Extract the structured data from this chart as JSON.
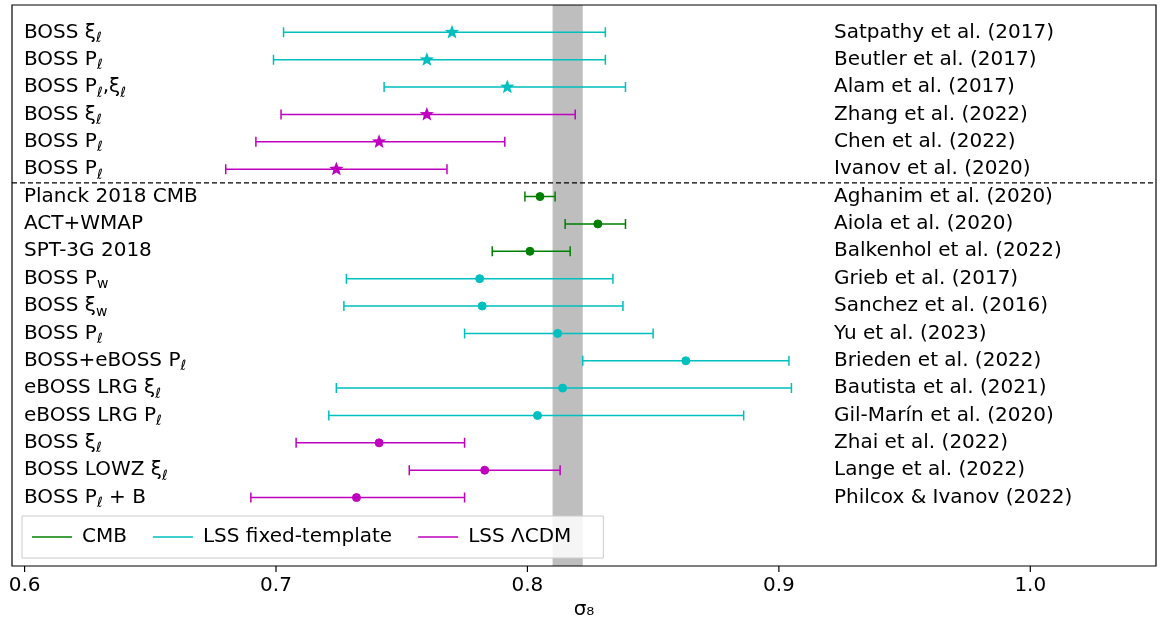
{
  "chart_data": {
    "type": "scatter",
    "orientation": "horizontal",
    "xlabel": "σ₈",
    "categories": [
      "BOSS ξ$_{ℓ}$",
      "BOSS P$_{ℓ}$",
      "BOSS P$_{ℓ}$,ξ$_{ℓ}$",
      "BOSS ξ$_{ℓ}$",
      "BOSS P$_{ℓ}$",
      "BOSS P$_{ℓ}$",
      "Planck 2018 CMB",
      "ACT+WMAP",
      "SPT-3G 2018",
      "BOSS P$_{w}$",
      "BOSS ξ$_{w}$",
      "BOSS P$_{ℓ}$",
      "BOSS+eBOSS P$_{ℓ}$",
      "eBOSS LRG ξ$_{ℓ}$",
      "eBOSS LRG P$_{ℓ}$",
      "BOSS ξ$_{ℓ}$",
      "BOSS LOWZ ξ$_{ℓ}$",
      "BOSS P$_{ℓ}$ + B"
    ],
    "y2_categories": [
      "Satpathy et al. (2017)",
      "Beutler et al. (2017)",
      "Alam et al. (2017)",
      "Zhang et al. (2022)",
      "Chen et al. (2022)",
      "Ivanov et al. (2020)",
      "Aghanim et al. (2020)",
      "Aiola et al. (2020)",
      "Balkenhol et al. (2022)",
      "Grieb et al. (2017)",
      "Sanchez et al. (2016)",
      "Yu et al. (2023)",
      "Brieden et al. (2022)",
      "Bautista et al. (2021)",
      "Gil-Marín et al. (2020)",
      "Zhai et al. (2022)",
      "Lange et al. (2022)",
      "Philcox & Ivanov (2022)"
    ],
    "series": [
      {
        "name": "CMB",
        "color": "#008000",
        "marker": "circle",
        "values": [
          null,
          null,
          null,
          null,
          null,
          null,
          0.805,
          0.828,
          0.801,
          null,
          null,
          null,
          null,
          null,
          null,
          null,
          null,
          null
        ],
        "errors": [
          null,
          null,
          null,
          null,
          null,
          null,
          [
            0.799,
            0.811
          ],
          [
            0.815,
            0.839
          ],
          [
            0.786,
            0.817
          ],
          null,
          null,
          null,
          null,
          null,
          null,
          null,
          null,
          null
        ]
      },
      {
        "name": "LSS fixed-template",
        "color": "#00bfbf",
        "marker": "circle",
        "values": [
          null,
          null,
          null,
          null,
          null,
          null,
          null,
          null,
          null,
          0.781,
          0.782,
          0.812,
          0.863,
          0.814,
          0.804,
          null,
          null,
          null
        ],
        "errors": [
          null,
          null,
          null,
          null,
          null,
          null,
          null,
          null,
          null,
          [
            0.728,
            0.834
          ],
          [
            0.727,
            0.838
          ],
          [
            0.775,
            0.85
          ],
          [
            0.822,
            0.904
          ],
          [
            0.724,
            0.905
          ],
          [
            0.721,
            0.886
          ],
          null,
          null,
          null
        ]
      },
      {
        "name": "LSS ΛCDM",
        "color": "#bf00bf",
        "marker": "circle",
        "values": [
          null,
          null,
          null,
          null,
          null,
          null,
          null,
          null,
          null,
          null,
          null,
          null,
          null,
          null,
          null,
          0.741,
          0.783,
          0.732
        ],
        "errors": [
          null,
          null,
          null,
          null,
          null,
          null,
          null,
          null,
          null,
          null,
          null,
          null,
          null,
          null,
          null,
          [
            0.708,
            0.775
          ],
          [
            0.753,
            0.813
          ],
          [
            0.69,
            0.775
          ]
        ]
      },
      {
        "color": "#00bfbf",
        "marker": "star",
        "values": [
          0.77,
          0.76,
          0.792,
          null,
          null,
          null,
          null,
          null,
          null,
          null,
          null,
          null,
          null,
          null,
          null,
          null,
          null,
          null
        ],
        "errors": [
          [
            0.703,
            0.831
          ],
          [
            0.699,
            0.831
          ],
          [
            0.743,
            0.839
          ],
          null,
          null,
          null,
          null,
          null,
          null,
          null,
          null,
          null,
          null,
          null,
          null,
          null,
          null,
          null
        ]
      },
      {
        "color": "#bf00bf",
        "marker": "star",
        "values": [
          null,
          null,
          null,
          0.76,
          0.741,
          0.724,
          null,
          null,
          null,
          null,
          null,
          null,
          null,
          null,
          null,
          null,
          null,
          null
        ],
        "errors": [
          null,
          null,
          null,
          [
            0.702,
            0.819
          ],
          [
            0.692,
            0.791
          ],
          [
            0.68,
            0.768
          ],
          null,
          null,
          null,
          null,
          null,
          null,
          null,
          null,
          null,
          null,
          null,
          null
        ]
      }
    ],
    "xlim": [
      0.595,
      1.05
    ],
    "xticks": [
      {
        "value": 0.6,
        "label": "0.6"
      },
      {
        "value": 0.7,
        "label": "0.7"
      },
      {
        "value": 0.8,
        "label": "0.8"
      },
      {
        "value": 0.9,
        "label": "0.9"
      },
      {
        "value": 1.0,
        "label": "1.0"
      }
    ],
    "bands": [
      {
        "axis": "x",
        "from": 0.81,
        "to": 0.822,
        "color": "#bebebe"
      }
    ],
    "legend": "bottom left"
  }
}
